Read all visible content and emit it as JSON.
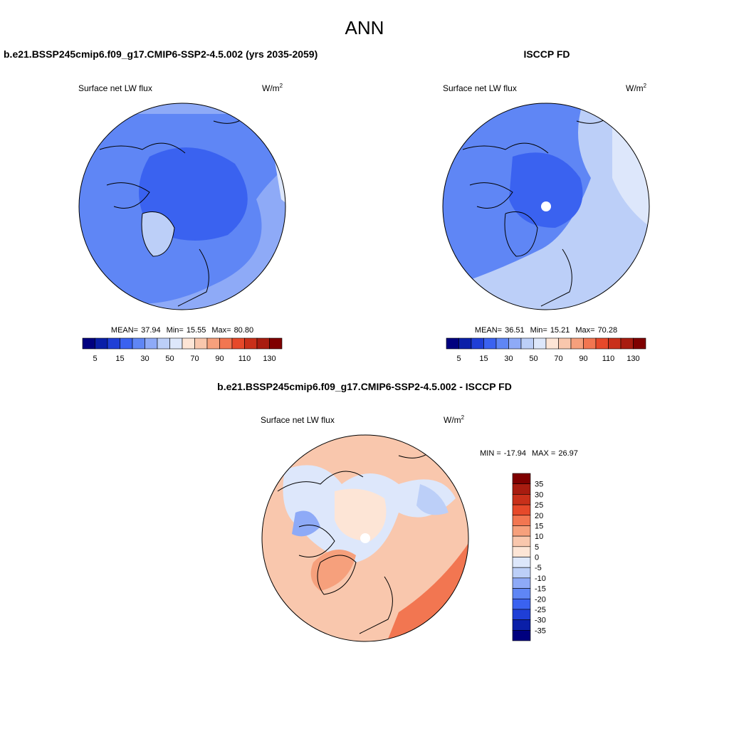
{
  "title": "ANN",
  "panels": [
    {
      "title": "b.e21.BSSP245cmip6.f09_g17.CMIP6-SSP2-4.5.002 (yrs 2035-2059)",
      "variable": "Surface net LW flux",
      "units": "W/m",
      "units_sup": "2",
      "stats": [
        {
          "label": "MEAN=",
          "value": "37.94"
        },
        {
          "label": "Min=",
          "value": "15.55"
        },
        {
          "label": "Max=",
          "value": "80.80"
        }
      ],
      "colorbar": {
        "labels": [
          "5",
          "15",
          "30",
          "50",
          "70",
          "90",
          "110",
          "130"
        ]
      }
    },
    {
      "title": "ISCCP FD",
      "variable": "Surface net LW flux",
      "units": "W/m",
      "units_sup": "2",
      "stats": [
        {
          "label": "MEAN=",
          "value": "36.51"
        },
        {
          "label": "Min=",
          "value": "15.21"
        },
        {
          "label": "Max=",
          "value": "70.28"
        }
      ],
      "colorbar": {
        "labels": [
          "5",
          "15",
          "30",
          "50",
          "70",
          "90",
          "110",
          "130"
        ]
      }
    },
    {
      "title": "b.e21.BSSP245cmip6.f09_g17.CMIP6-SSP2-4.5.002 - ISCCP FD",
      "variable": "Surface net LW flux",
      "units": "W/m",
      "units_sup": "2",
      "stats": [
        {
          "label": "MIN =",
          "value": "-17.94"
        },
        {
          "label": "MAX =",
          "value": "26.97"
        }
      ],
      "colorbar": {
        "labels": [
          "35",
          "30",
          "25",
          "20",
          "15",
          "10",
          "5",
          "0",
          "-5",
          "-10",
          "-15",
          "-20",
          "-25",
          "-30",
          "-35"
        ]
      }
    }
  ],
  "colors": [
    "#00007f",
    "#0a1fa8",
    "#1f3fd6",
    "#3a62f0",
    "#5f86f5",
    "#8eaaf7",
    "#bccff8",
    "#dde7fb",
    "#fde5d6",
    "#f9c7ad",
    "#f6a07c",
    "#f27651",
    "#e6492a",
    "#c9301a",
    "#a81c10",
    "#7f0000"
  ]
}
